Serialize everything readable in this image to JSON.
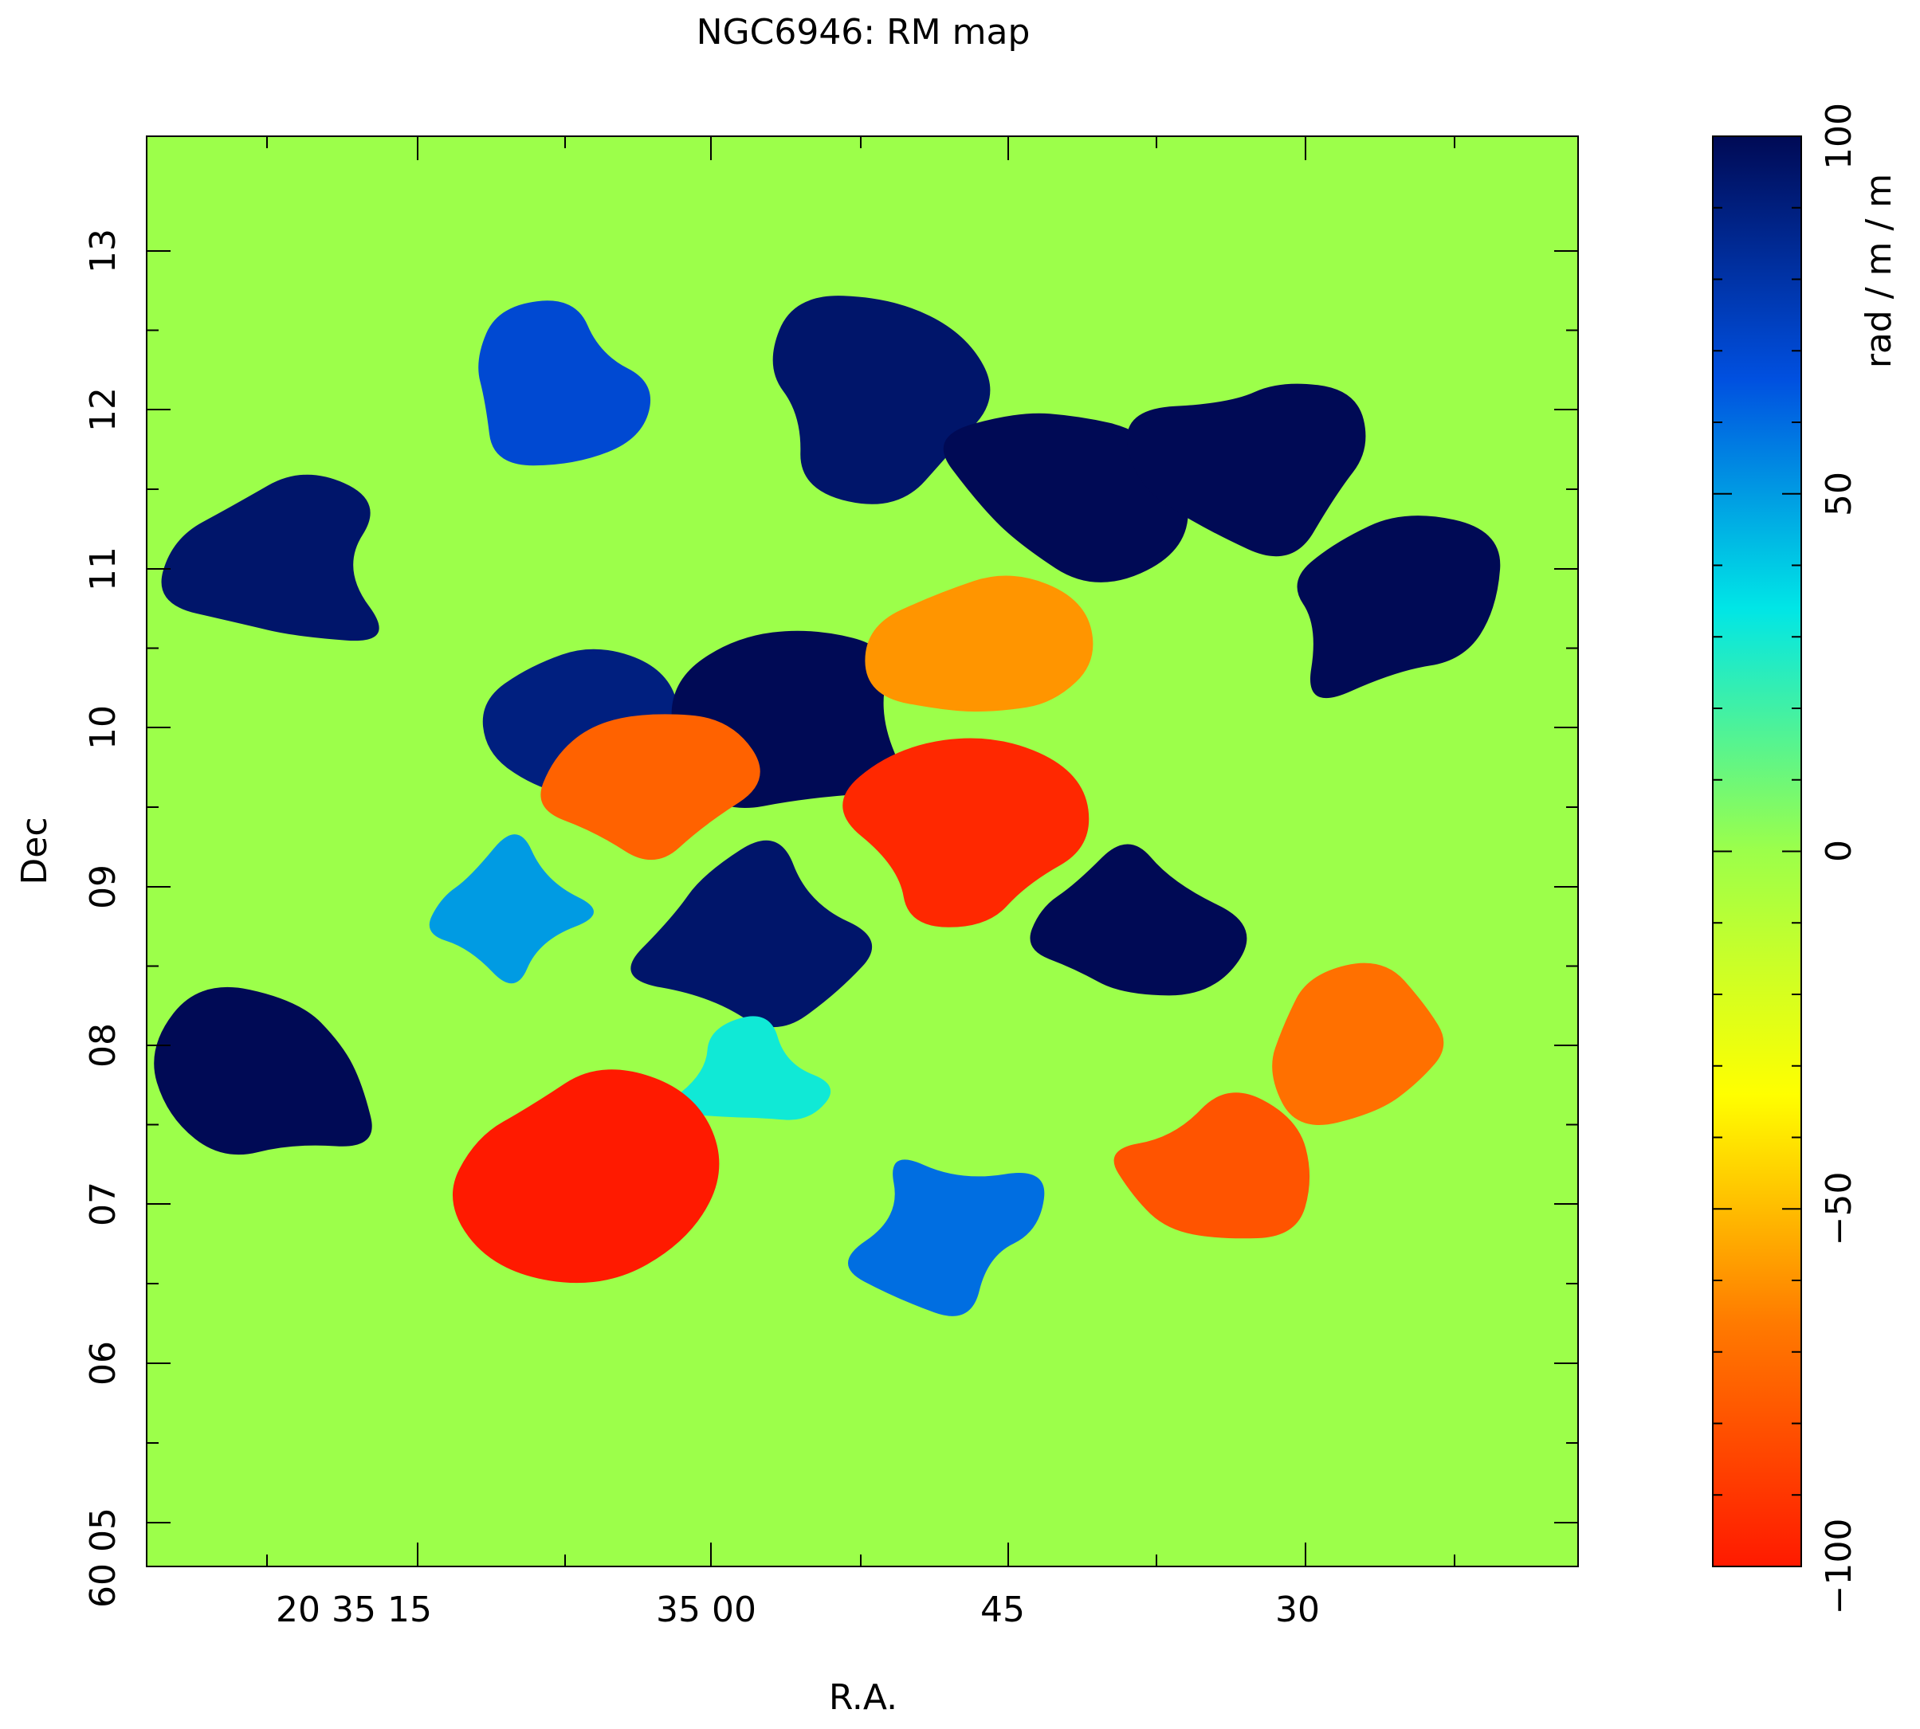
{
  "chart_data": {
    "type": "heatmap",
    "title": "NGC6946: RM map",
    "xlabel": "R.A.",
    "ylabel": "Dec",
    "x_tick_labels": [
      "20 35 15",
      "35 00",
      "45",
      "30"
    ],
    "y_tick_labels": [
      "60 05",
      "06",
      "07",
      "08",
      "09",
      "10",
      "11",
      "12",
      "13"
    ],
    "colorbar": {
      "label": "rad / m / m",
      "min": -100,
      "max": 100,
      "tick_values": [
        -100,
        -50,
        0,
        50,
        100
      ],
      "tick_labels": [
        "−100",
        "−50",
        "0",
        "50",
        "100"
      ],
      "colormap": [
        "#ff1a00",
        "#ff7a00",
        "#ffff00",
        "#9cff4a",
        "#00e6e6",
        "#0050e0",
        "#000a55"
      ]
    },
    "background_value": 0,
    "regions": [
      {
        "ra": "20 35 22",
        "dec": "60 11 00",
        "value": 95
      },
      {
        "ra": "20 35 08",
        "dec": "60 12 10",
        "value": 70
      },
      {
        "ra": "20 34 52",
        "dec": "60 12 05",
        "value": 95
      },
      {
        "ra": "20 34 42",
        "dec": "60 11 35",
        "value": 100
      },
      {
        "ra": "20 34 32",
        "dec": "60 11 45",
        "value": 100
      },
      {
        "ra": "20 34 26",
        "dec": "60 10 45",
        "value": 100
      },
      {
        "ra": "20 35 07",
        "dec": "60 10 00",
        "value": 90
      },
      {
        "ra": "20 34 56",
        "dec": "60 10 05",
        "value": 100
      },
      {
        "ra": "20 35 04",
        "dec": "60 09 40",
        "value": -75
      },
      {
        "ra": "20 35 11",
        "dec": "60 08 50",
        "value": 50
      },
      {
        "ra": "20 34 47",
        "dec": "60 09 15",
        "value": -95
      },
      {
        "ra": "20 34 40",
        "dec": "60 08 45",
        "value": 100
      },
      {
        "ra": "20 34 58",
        "dec": "60 08 40",
        "value": 95
      },
      {
        "ra": "20 34 48",
        "dec": "60 06 50",
        "value": 60
      },
      {
        "ra": "20 34 35",
        "dec": "60 07 10",
        "value": -80
      },
      {
        "ra": "20 34 58",
        "dec": "60 07 45",
        "value": 30
      },
      {
        "ra": "20 35 07",
        "dec": "60 07 15",
        "value": -100
      },
      {
        "ra": "20 34 27",
        "dec": "60 08 00",
        "value": -70
      },
      {
        "ra": "20 34 46",
        "dec": "60 10 25",
        "value": -60
      },
      {
        "ra": "20 35 22",
        "dec": "60 07 45",
        "value": 100
      }
    ]
  }
}
